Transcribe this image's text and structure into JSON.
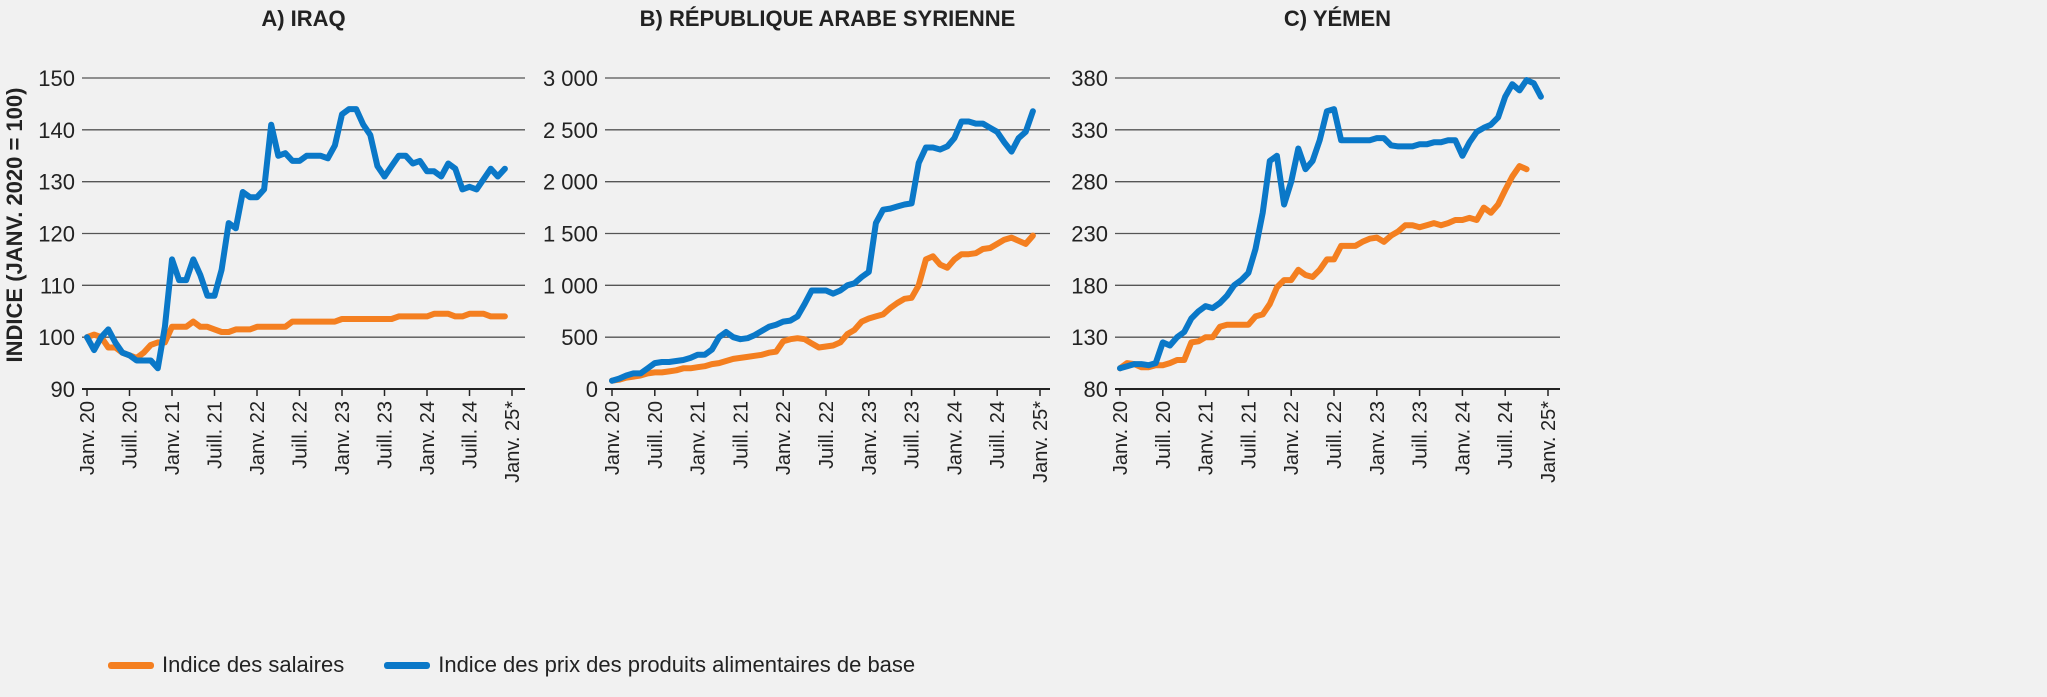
{
  "ylabel": "INDICE (JANV. 2020 = 100)",
  "colors": {
    "wages": "#f47f20",
    "food": "#0a78c8"
  },
  "legend": {
    "wages": "Indice des salaires",
    "food": "Indice des prix des produits alimentaires de base"
  },
  "chart_data": [
    {
      "type": "line",
      "title": "A) IRAQ",
      "x_ticks": [
        "Janv. 20",
        "Juill. 20",
        "Janv. 21",
        "Juill. 21",
        "Janv. 22",
        "Juill. 22",
        "Janv. 23",
        "Juill. 23",
        "Janv. 24",
        "Juill. 24",
        "Janv. 25*"
      ],
      "y_ticks": [
        "90",
        "100",
        "110",
        "120",
        "130",
        "140",
        "150"
      ],
      "ylim": [
        90,
        150
      ],
      "xlim": [
        "2020-01",
        "2025-01"
      ],
      "x_start": "2020-01",
      "grid": true,
      "series": [
        {
          "name": "Indice des salaires",
          "key": "wages",
          "values": [
            100,
            100.5,
            100,
            98,
            98,
            97,
            96.5,
            96,
            97,
            98.5,
            99,
            99,
            102,
            102,
            102,
            103,
            102,
            102,
            101.5,
            101,
            101,
            101.5,
            101.5,
            101.5,
            102,
            102,
            102,
            102,
            102,
            103,
            103,
            103,
            103,
            103,
            103,
            103,
            103.5,
            103.5,
            103.5,
            103.5,
            103.5,
            103.5,
            103.5,
            103.5,
            104,
            104,
            104,
            104,
            104,
            104.5,
            104.5,
            104.5,
            104,
            104,
            104.5,
            104.5,
            104.5,
            104,
            104,
            104
          ]
        },
        {
          "name": "Indice des prix des produits alimentaires de base",
          "key": "food",
          "values": [
            100,
            97.5,
            100,
            101.5,
            99,
            97,
            96.5,
            95.5,
            95.5,
            95.5,
            94,
            102,
            115,
            111,
            111,
            115,
            112,
            108,
            108,
            113,
            122,
            121,
            128,
            127,
            127,
            128.5,
            141,
            135,
            135.5,
            134,
            134,
            135,
            135,
            135,
            134.5,
            137,
            143,
            144,
            144,
            141,
            139,
            133,
            131,
            133,
            135,
            135,
            133.5,
            134,
            132,
            132,
            131,
            133.5,
            132.5,
            128.5,
            129,
            128.5,
            130.5,
            132.5,
            131,
            132.5
          ]
        }
      ]
    },
    {
      "type": "line",
      "title": "B) RÉPUBLIQUE ARABE SYRIENNE",
      "x_ticks": [
        "Janv. 20",
        "Juill. 20",
        "Janv. 21",
        "Juill. 21",
        "Janv. 22",
        "Juill. 22",
        "Janv. 23",
        "Juill. 23",
        "Janv. 24",
        "Juill. 24",
        "Janv. 25*"
      ],
      "y_ticks": [
        "0",
        "500",
        "1 000",
        "1 500",
        "2 000",
        "2 500",
        "3 000"
      ],
      "ylim": [
        0,
        3000
      ],
      "xlim": [
        "2020-01",
        "2025-01"
      ],
      "x_start": "2020-01",
      "grid": true,
      "series": [
        {
          "name": "Indice des salaires",
          "key": "wages",
          "values": [
            80,
            90,
            110,
            120,
            130,
            150,
            160,
            160,
            170,
            180,
            200,
            200,
            210,
            220,
            240,
            250,
            270,
            290,
            300,
            310,
            320,
            330,
            350,
            360,
            460,
            480,
            490,
            480,
            440,
            400,
            410,
            420,
            450,
            530,
            570,
            650,
            680,
            700,
            720,
            780,
            830,
            870,
            880,
            1000,
            1250,
            1280,
            1200,
            1170,
            1250,
            1300,
            1300,
            1310,
            1350,
            1360,
            1400,
            1440,
            1460,
            1430,
            1400,
            1480
          ]
        },
        {
          "name": "Indice des prix des produits alimentaires de base",
          "key": "food",
          "values": [
            80,
            100,
            130,
            150,
            150,
            200,
            250,
            260,
            260,
            270,
            280,
            300,
            330,
            330,
            380,
            500,
            550,
            500,
            480,
            490,
            520,
            560,
            600,
            620,
            650,
            660,
            700,
            820,
            950,
            950,
            950,
            920,
            950,
            1000,
            1020,
            1080,
            1130,
            1600,
            1730,
            1740,
            1760,
            1780,
            1790,
            2180,
            2330,
            2330,
            2310,
            2340,
            2420,
            2580,
            2580,
            2560,
            2560,
            2520,
            2480,
            2380,
            2290,
            2420,
            2480,
            2680
          ]
        }
      ]
    },
    {
      "type": "line",
      "title": "C) YÉMEN",
      "x_ticks": [
        "Janv. 20",
        "Juill. 20",
        "Janv. 21",
        "Juill. 21",
        "Janv. 22",
        "Juill. 22",
        "Janv. 23",
        "Juill. 23",
        "Janv. 24",
        "Juill. 24",
        "Janv. 25*"
      ],
      "y_ticks": [
        "80",
        "130",
        "180",
        "230",
        "280",
        "330",
        "380"
      ],
      "ylim": [
        80,
        380
      ],
      "xlim": [
        "2020-01",
        "2025-01"
      ],
      "x_start": "2020-01",
      "grid": true,
      "series": [
        {
          "name": "Indice des salaires",
          "key": "wages",
          "values": [
            100,
            105,
            104,
            101,
            101,
            103,
            103,
            105,
            108,
            108,
            125,
            126,
            130,
            130,
            140,
            142,
            142,
            142,
            142,
            150,
            152,
            162,
            178,
            185,
            185,
            195,
            190,
            188,
            195,
            205,
            205,
            218,
            218,
            218,
            222,
            225,
            226,
            222,
            228,
            232,
            238,
            238,
            236,
            238,
            240,
            238,
            240,
            243,
            243,
            245,
            243,
            255,
            250,
            258,
            272,
            285,
            295,
            292
          ]
        },
        {
          "name": "Indice des prix des produits alimentaires de base",
          "key": "food",
          "values": [
            100,
            102,
            104,
            104,
            103,
            105,
            125,
            122,
            130,
            135,
            148,
            155,
            160,
            158,
            163,
            170,
            180,
            185,
            192,
            215,
            250,
            300,
            305,
            258,
            280,
            312,
            292,
            300,
            320,
            348,
            350,
            320,
            320,
            320,
            320,
            320,
            322,
            322,
            315,
            314,
            314,
            314,
            316,
            316,
            318,
            318,
            320,
            320,
            305,
            318,
            328,
            332,
            335,
            342,
            362,
            374,
            368,
            378,
            375,
            362
          ]
        }
      ]
    }
  ]
}
